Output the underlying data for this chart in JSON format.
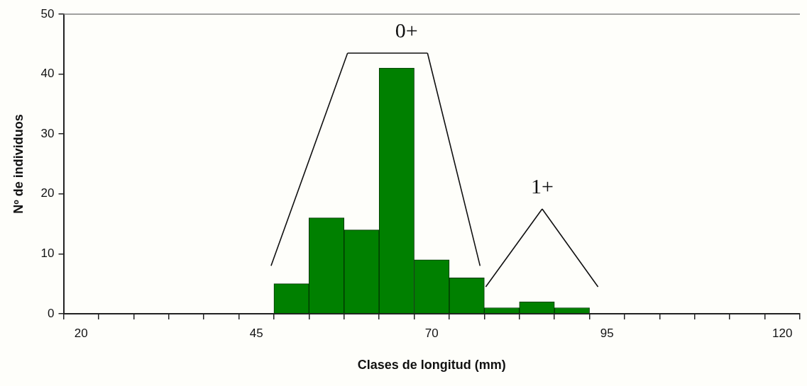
{
  "chart_data": {
    "type": "histogram",
    "xlabel": "Clases de longitud (mm)",
    "ylabel": "Nº de individuos",
    "bins": [
      47.5,
      52.5,
      57.5,
      62.5,
      67.5,
      72.5,
      77.5,
      82.5,
      87.5,
      92.5
    ],
    "values": [
      5,
      16,
      14,
      41,
      9,
      6,
      1,
      2,
      1
    ],
    "color": "#008000",
    "xlim": [
      17.5,
      122.5
    ],
    "xticks": [
      {
        "value": 17.5,
        "label": null
      },
      20,
      {
        "value": 22.5,
        "label": null
      },
      {
        "value": 27.5,
        "label": null
      },
      {
        "value": 32.5,
        "label": null
      },
      {
        "value": 37.5,
        "label": null
      },
      {
        "value": 42.5,
        "label": null
      },
      45,
      {
        "value": 47.5,
        "label": null
      },
      {
        "value": 52.5,
        "label": null
      },
      {
        "value": 57.5,
        "label": null
      },
      {
        "value": 62.5,
        "label": null
      },
      {
        "value": 67.5,
        "label": null
      },
      70,
      {
        "value": 72.5,
        "label": null
      },
      {
        "value": 77.5,
        "label": null
      },
      {
        "value": 82.5,
        "label": null
      },
      {
        "value": 87.5,
        "label": null
      },
      {
        "value": 92.5,
        "label": null
      },
      95,
      {
        "value": 97.5,
        "label": null
      },
      {
        "value": 102.5,
        "label": null
      },
      {
        "value": 107.5,
        "label": null
      },
      {
        "value": 112.5,
        "label": null
      },
      {
        "value": 117.5,
        "label": null
      },
      120,
      {
        "value": 122.5,
        "label": null
      }
    ],
    "ylim": [
      0,
      50
    ],
    "yticks": [
      0,
      10,
      20,
      30,
      40,
      50
    ],
    "grid": false,
    "legend": false,
    "annotations": [
      "0+",
      "1+"
    ]
  }
}
